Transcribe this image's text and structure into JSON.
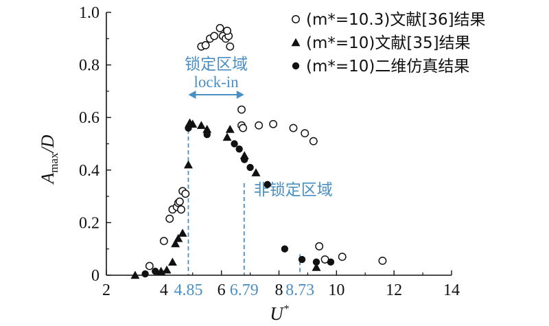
{
  "chart_data": {
    "type": "scatter",
    "xlabel": "U*",
    "ylabel": "A_max/D",
    "xlim": [
      2,
      14
    ],
    "ylim": [
      0,
      1.0
    ],
    "x_ticks": [
      "2",
      "4",
      "6",
      "8",
      "10",
      "12",
      "14"
    ],
    "y_ticks": [
      "0",
      "0.2",
      "0.4",
      "0.6",
      "0.8",
      "1.0"
    ],
    "grid": false,
    "legend_position": "top-right",
    "series": [
      {
        "name": "(m*=10.3)文献[36]结果",
        "marker": "open-circle",
        "x": [
          3.5,
          4.0,
          4.2,
          4.3,
          4.45,
          4.5,
          4.55,
          4.6,
          4.65,
          4.75,
          5.3,
          5.45,
          5.6,
          5.75,
          5.95,
          6.05,
          6.15,
          6.25,
          6.3,
          6.2,
          6.7,
          6.7,
          6.75,
          7.3,
          7.8,
          8.5,
          8.9,
          9.2,
          9.4,
          9.6,
          10.2,
          11.6
        ],
        "y": [
          0.035,
          0.13,
          0.215,
          0.25,
          0.26,
          0.275,
          0.28,
          0.25,
          0.32,
          0.31,
          0.87,
          0.875,
          0.9,
          0.91,
          0.94,
          0.91,
          0.9,
          0.91,
          0.87,
          0.93,
          0.63,
          0.57,
          0.56,
          0.57,
          0.575,
          0.56,
          0.54,
          0.51,
          0.11,
          0.06,
          0.07,
          0.055
        ]
      },
      {
        "name": "(m*=10)文献[35]结果",
        "marker": "filled-triangle",
        "x": [
          3.0,
          3.9,
          4.1,
          4.3,
          4.4,
          4.5,
          4.65,
          4.85,
          4.9,
          5.0,
          5.3,
          5.5,
          6.2,
          6.3,
          6.8,
          7.2,
          9.3
        ],
        "y": [
          0.0,
          0.015,
          0.02,
          0.05,
          0.12,
          0.14,
          0.16,
          0.42,
          0.58,
          0.575,
          0.57,
          0.555,
          0.525,
          0.555,
          0.455,
          0.39,
          0.03
        ]
      },
      {
        "name": "(m*=10)二维仿真结果",
        "marker": "filled-circle",
        "x": [
          3.35,
          3.7,
          4.85,
          5.5,
          6.45,
          6.62,
          6.8,
          7.0,
          7.6,
          8.2,
          8.8,
          9.3,
          9.8
        ],
        "y": [
          0.005,
          0.015,
          0.56,
          0.535,
          0.5,
          0.48,
          0.44,
          0.41,
          0.345,
          0.1,
          0.06,
          0.05,
          0.05
        ]
      }
    ],
    "annotations": {
      "lock_in_title": "锁定区域",
      "lock_in_label": "lock-in",
      "non_lock_in_label": "非锁定区域",
      "markers": [
        {
          "x": 4.85,
          "label": "4.85",
          "y_top": 0.58
        },
        {
          "x": 6.79,
          "label": "6.79",
          "y_top": 0.35
        },
        {
          "x": 8.73,
          "label": "8.73",
          "y_top": 0.08
        }
      ]
    },
    "colors": {
      "axis": "#111111",
      "annotation": "#4a8fc4"
    }
  }
}
